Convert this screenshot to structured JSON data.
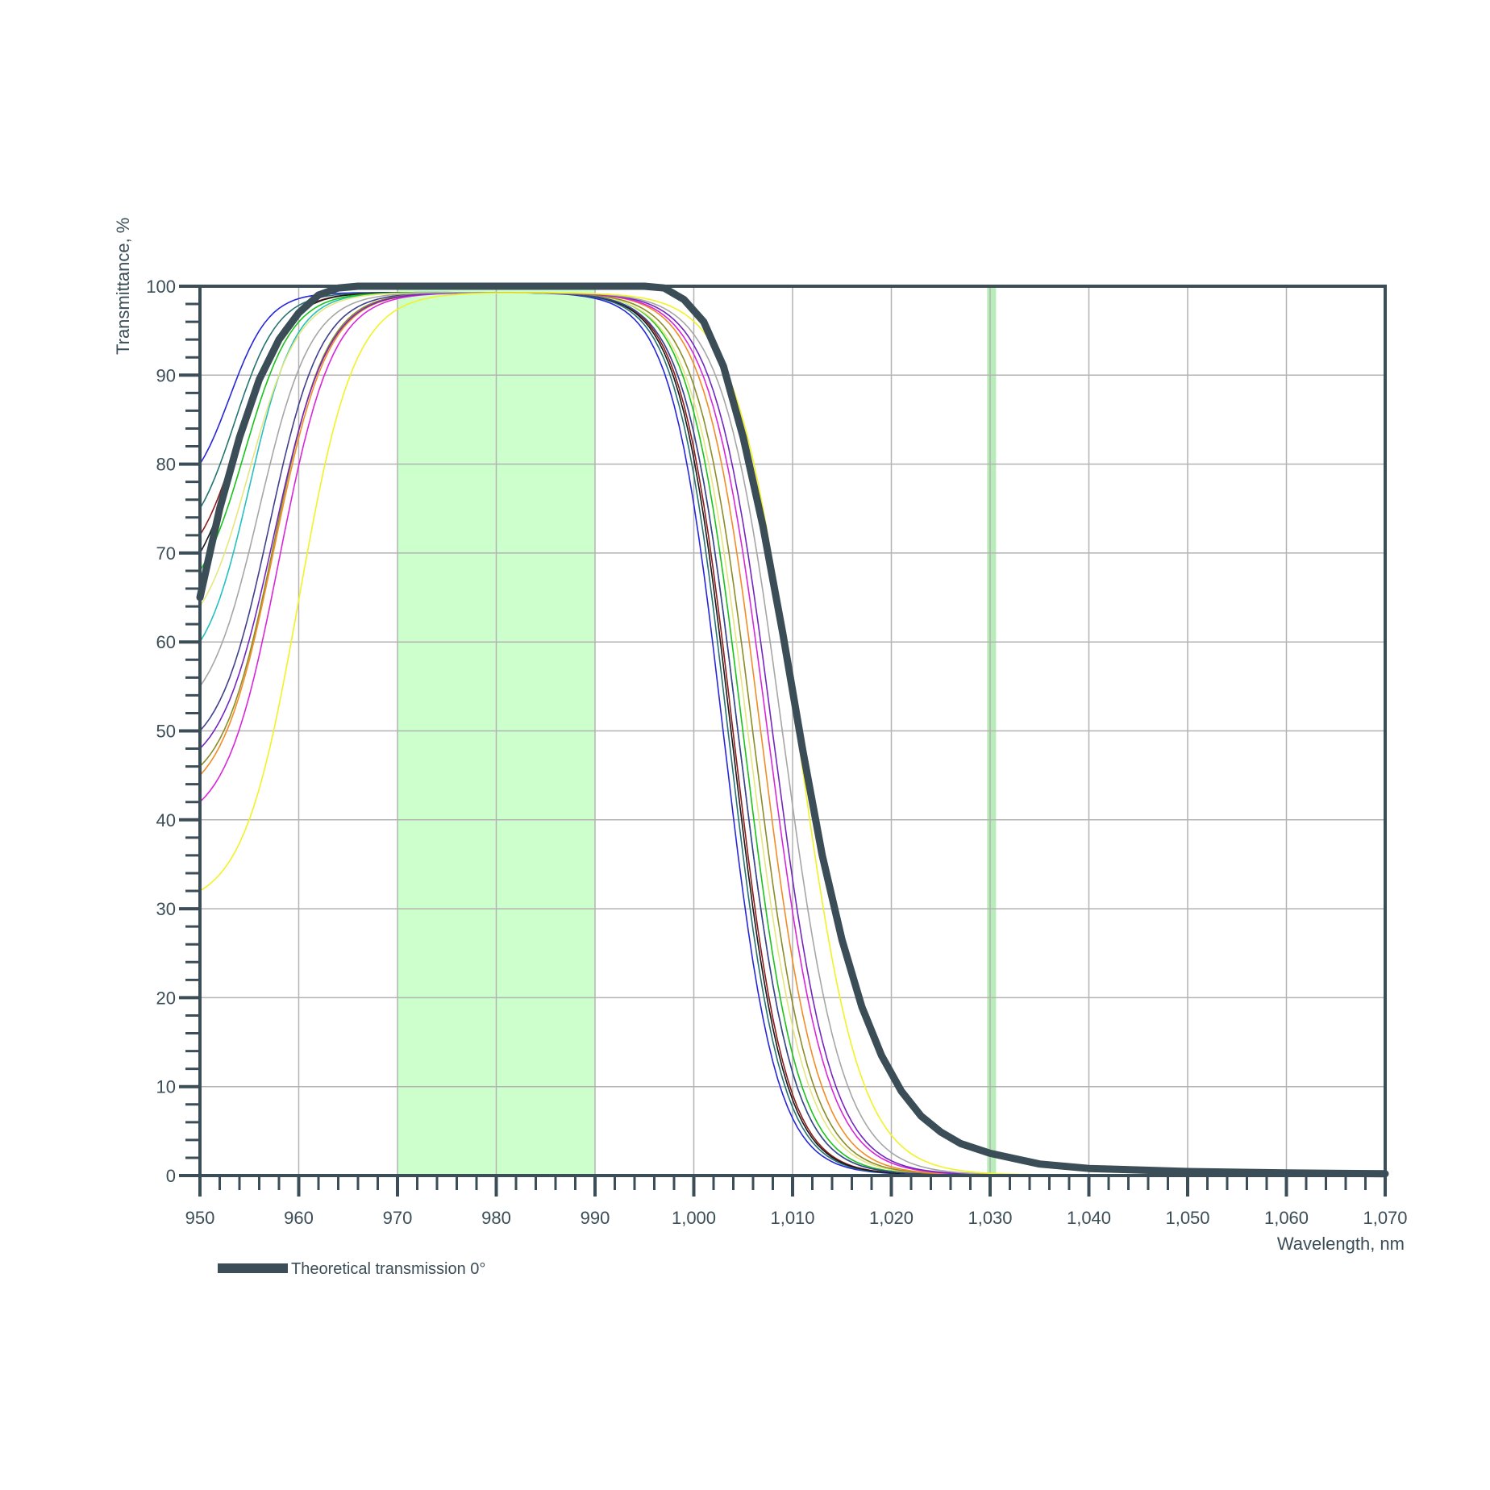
{
  "chart_data": {
    "type": "line",
    "xlabel": "Wavelength, nm",
    "ylabel": "Transmittance, %",
    "xlim": [
      950,
      1070
    ],
    "ylim": [
      0,
      100
    ],
    "x_ticks": [
      950,
      960,
      970,
      980,
      990,
      1000,
      1010,
      1020,
      1030,
      1040,
      1050,
      1060,
      1070
    ],
    "x_tick_labels": [
      "950",
      "960",
      "970",
      "980",
      "990",
      "1,000",
      "1,010",
      "1,020",
      "1,030",
      "1,040",
      "1,050",
      "1,060",
      "1,070"
    ],
    "y_ticks": [
      0,
      10,
      20,
      30,
      40,
      50,
      60,
      70,
      80,
      90,
      100
    ],
    "y_tick_labels": [
      "0",
      "10",
      "20",
      "30",
      "40",
      "50",
      "60",
      "70",
      "80",
      "90",
      "100"
    ],
    "grid": true,
    "highlight_bands": [
      {
        "from": 970,
        "to": 990,
        "color": "#ccffcc"
      },
      {
        "from": 1029.7,
        "to": 1030.6,
        "color": "#b8ecb8"
      }
    ],
    "colors": {
      "axis": "#3b4d57",
      "grid": "#b3b3b3",
      "theoretical": "#3b4d57"
    },
    "legend": {
      "position": "bottom-left",
      "entries": [
        "Theoretical transmission 0°"
      ]
    },
    "theoretical": {
      "name": "Theoretical transmission 0°",
      "color": "#3b4d57",
      "points": [
        [
          950,
          65
        ],
        [
          952,
          75
        ],
        [
          954,
          83
        ],
        [
          956,
          89.5
        ],
        [
          958,
          94
        ],
        [
          960,
          97
        ],
        [
          962,
          99
        ],
        [
          964,
          99.8
        ],
        [
          966,
          100
        ],
        [
          995,
          100
        ],
        [
          997,
          99.8
        ],
        [
          999,
          98.5
        ],
        [
          1001,
          96
        ],
        [
          1003,
          91
        ],
        [
          1005,
          83
        ],
        [
          1007,
          73
        ],
        [
          1009,
          61
        ],
        [
          1011,
          48
        ],
        [
          1013,
          36
        ],
        [
          1015,
          26.5
        ],
        [
          1017,
          19
        ],
        [
          1019,
          13.5
        ],
        [
          1021,
          9.5
        ],
        [
          1023,
          6.7
        ],
        [
          1025,
          4.9
        ],
        [
          1027,
          3.6
        ],
        [
          1030,
          2.5
        ],
        [
          1035,
          1.3
        ],
        [
          1040,
          0.8
        ],
        [
          1050,
          0.45
        ],
        [
          1060,
          0.3
        ],
        [
          1070,
          0.2
        ]
      ]
    },
    "series": [
      {
        "color": "#2626d9",
        "rise_start": 80,
        "rise_center": 953,
        "rise_width": 2,
        "fall_center": 1003,
        "fall_width": 2.6
      },
      {
        "color": "#267373",
        "rise_start": 75,
        "rise_center": 953.5,
        "rise_width": 2.2,
        "fall_center": 1003.5,
        "fall_width": 2.6
      },
      {
        "color": "#8c1a1a",
        "rise_start": 72,
        "rise_center": 954,
        "rise_width": 2.3,
        "fall_center": 1004,
        "fall_width": 2.6
      },
      {
        "color": "#1a1a1a",
        "rise_start": 70,
        "rise_center": 954,
        "rise_width": 2.3,
        "fall_center": 1003.8,
        "fall_width": 2.6
      },
      {
        "color": "#26bfbf",
        "rise_start": 60,
        "rise_center": 955,
        "rise_width": 2.3,
        "fall_center": 1004.5,
        "fall_width": 2.7
      },
      {
        "color": "#1ac21a",
        "rise_start": 68,
        "rise_center": 954.5,
        "rise_width": 2.4,
        "fall_center": 1005,
        "fall_width": 2.7
      },
      {
        "color": "#e6e680",
        "rise_start": 64,
        "rise_center": 955,
        "rise_width": 2.5,
        "fall_center": 1005.5,
        "fall_width": 2.8
      },
      {
        "color": "#40408c",
        "rise_start": 50,
        "rise_center": 957,
        "rise_width": 2.6,
        "fall_center": 1004.5,
        "fall_width": 2.7
      },
      {
        "color": "#8c8c26",
        "rise_start": 46,
        "rise_center": 957.5,
        "rise_width": 2.6,
        "fall_center": 1006,
        "fall_width": 2.8
      },
      {
        "color": "#f28c26",
        "rise_start": 45,
        "rise_center": 957.5,
        "rise_width": 2.7,
        "fall_center": 1006.8,
        "fall_width": 2.8
      },
      {
        "color": "#d926d9",
        "rise_start": 42,
        "rise_center": 958,
        "rise_width": 2.7,
        "fall_center": 1007.5,
        "fall_width": 2.9
      },
      {
        "color": "#7326bf",
        "rise_start": 48,
        "rise_center": 957.5,
        "rise_width": 2.7,
        "fall_center": 1008,
        "fall_width": 2.9
      },
      {
        "color": "#a6a6a6",
        "rise_start": 55,
        "rise_center": 956,
        "rise_width": 2.6,
        "fall_center": 1009,
        "fall_width": 3
      },
      {
        "color": "#f2f226",
        "rise_start": 32,
        "rise_center": 960,
        "rise_width": 2.8,
        "fall_center": 1010.5,
        "fall_width": 3.1
      }
    ]
  }
}
